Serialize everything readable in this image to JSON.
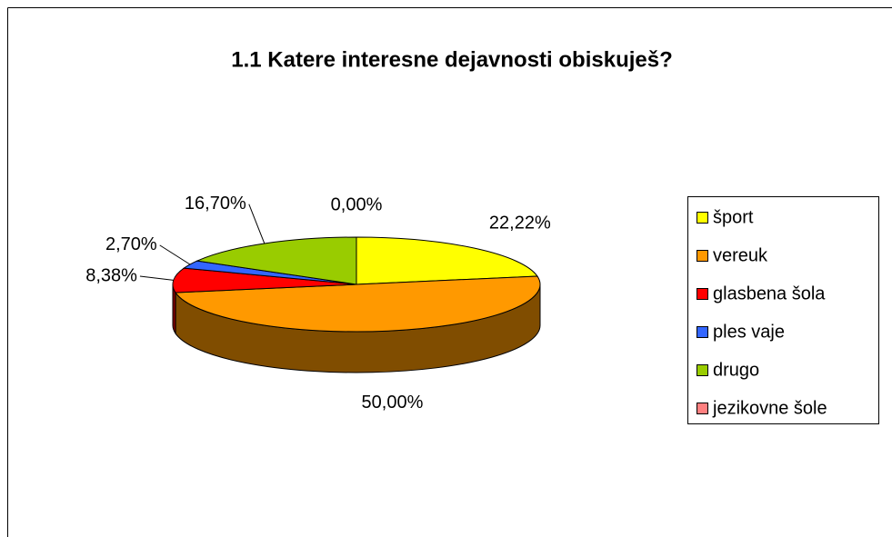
{
  "chart_data": {
    "type": "pie3d",
    "title": "1.1 Katere interesne dejavnosti obiskuješ?",
    "categories": [
      "šport",
      "vereuk",
      "glasbena šola",
      "ples vaje",
      "drugo",
      "jezikovne šole"
    ],
    "values": [
      22.22,
      50.0,
      8.38,
      2.7,
      16.7,
      0.0
    ],
    "value_labels": [
      "22,22%",
      "50,00%",
      "8,38%",
      "2,70%",
      "16,70%",
      "0,00%"
    ],
    "colors": [
      "#ffff00",
      "#ff9900",
      "#ff0000",
      "#3366ff",
      "#99cc00",
      "#ff8080"
    ],
    "legend": "right"
  }
}
